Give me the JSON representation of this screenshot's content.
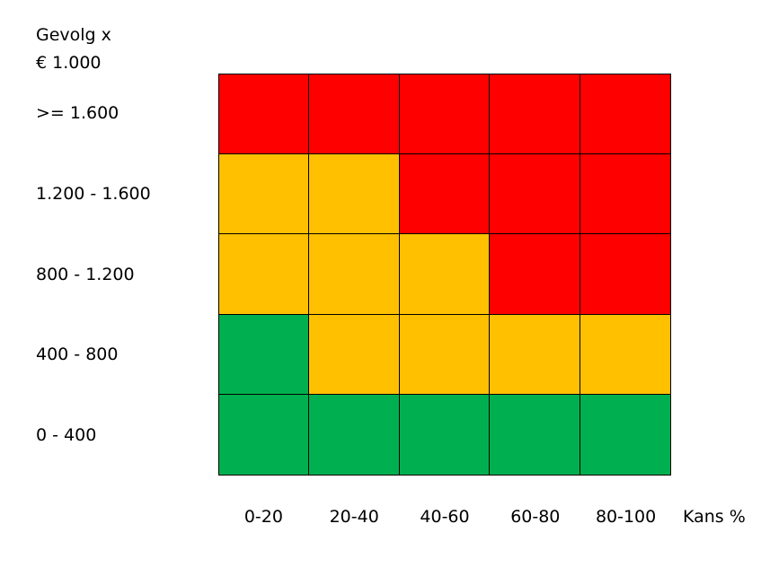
{
  "chart_data": {
    "type": "heatmap",
    "title_lines": [
      "Gevolg x",
      "€ 1.000"
    ],
    "xlabel": "Kans %",
    "x_categories": [
      "0-20",
      "20-40",
      "40-60",
      "60-80",
      "80-100"
    ],
    "y_categories_top_to_bottom": [
      ">= 1.600",
      "1.200 - 1.600",
      "800 - 1.200",
      "400 - 800",
      "0 - 400"
    ],
    "palette": {
      "green": "#00b050",
      "orange": "#ffc000",
      "red": "#ff0000"
    },
    "cells": [
      [
        "red",
        "red",
        "red",
        "red",
        "red"
      ],
      [
        "orange",
        "orange",
        "red",
        "red",
        "red"
      ],
      [
        "orange",
        "orange",
        "orange",
        "red",
        "red"
      ],
      [
        "green",
        "orange",
        "orange",
        "orange",
        "orange"
      ],
      [
        "green",
        "green",
        "green",
        "green",
        "green"
      ]
    ]
  }
}
